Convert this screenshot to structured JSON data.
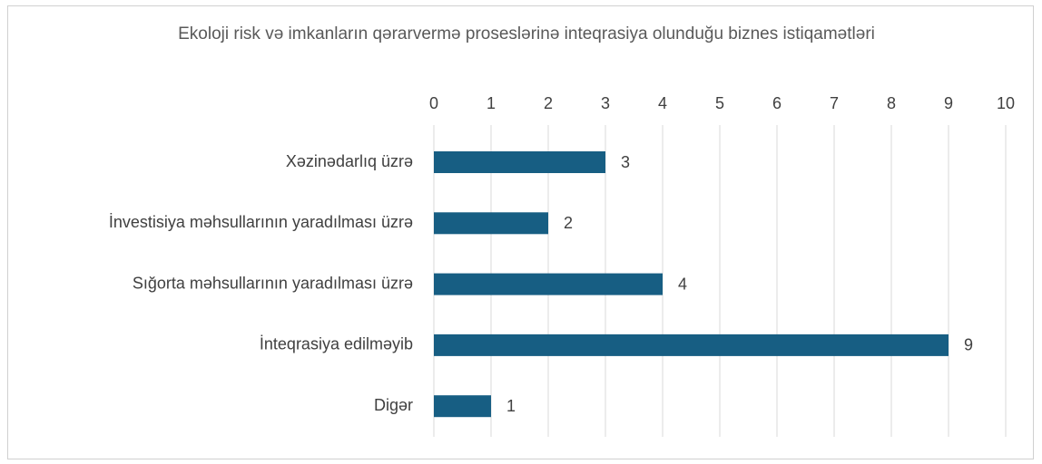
{
  "chart_data": {
    "type": "bar",
    "orientation": "horizontal",
    "title": "Ekoloji risk və imkanların qərarvermə proseslərinə inteqrasiya olunduğu biznes istiqamətləri",
    "categories": [
      "Xəzinədarlıq üzrə",
      "İnvestisiya məhsullarının yaradılması üzrə",
      "Sığorta məhsullarının yaradılması üzrə",
      "İnteqrasiya edilməyib",
      "Digər"
    ],
    "values": [
      3,
      2,
      4,
      9,
      1
    ],
    "color": "#175e83",
    "xlim": [
      0,
      10
    ],
    "xticks": [
      0,
      1,
      2,
      3,
      4,
      5,
      6,
      7,
      8,
      9,
      10
    ],
    "grid": true
  }
}
